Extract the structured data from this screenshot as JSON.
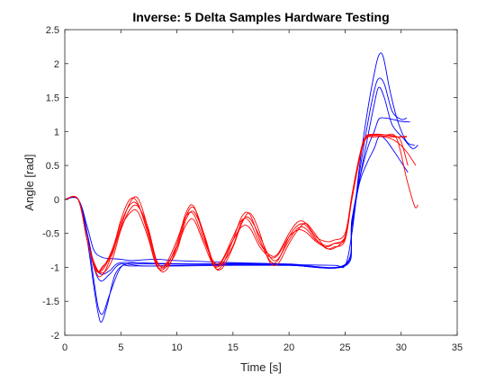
{
  "chart_data": {
    "type": "line",
    "title": "Inverse: 5 Delta Samples Hardware Testing",
    "xlabel": "Time [s]",
    "ylabel": "Angle [rad]",
    "xlim": [
      0,
      35
    ],
    "ylim": [
      -2,
      2.5
    ],
    "xticks": [
      0,
      5,
      10,
      15,
      20,
      25,
      30,
      35
    ],
    "xtick_labels": [
      "0",
      "5",
      "10",
      "15",
      "20",
      "25",
      "30",
      "35"
    ],
    "yticks": [
      -2,
      -1.5,
      -1,
      -0.5,
      0,
      0.5,
      1,
      1.5,
      2,
      2.5
    ],
    "ytick_labels": [
      "-2",
      "-1.5",
      "-1",
      "-0.5",
      "0",
      "0.5",
      "1",
      "1.5",
      "2",
      "2.5"
    ],
    "grid": false,
    "legend": "none",
    "colors": {
      "blue": "#0000ff",
      "red": "#ff0000",
      "axis": "#262626"
    },
    "series": [
      {
        "color": "#0000ff",
        "points": [
          [
            0,
            0
          ],
          [
            1.2,
            0
          ],
          [
            2,
            -0.6
          ],
          [
            2.6,
            -1.3
          ],
          [
            3,
            -1.7
          ],
          [
            3.3,
            -1.8
          ],
          [
            3.8,
            -1.55
          ],
          [
            4.5,
            -1.1
          ],
          [
            5.5,
            -0.95
          ],
          [
            7,
            -0.95
          ],
          [
            10,
            -0.95
          ],
          [
            15,
            -0.95
          ],
          [
            20,
            -0.96
          ],
          [
            24,
            -0.97
          ],
          [
            25,
            -0.97
          ],
          [
            25.6,
            -0.5
          ],
          [
            26.3,
            0.5
          ],
          [
            27,
            1.3
          ],
          [
            27.6,
            1.85
          ],
          [
            28,
            2.12
          ],
          [
            28.4,
            2.1
          ],
          [
            29,
            1.6
          ],
          [
            29.7,
            1.15
          ],
          [
            30.5,
            0.85
          ],
          [
            31.2,
            0.8
          ]
        ]
      },
      {
        "color": "#0000ff",
        "points": [
          [
            0,
            0
          ],
          [
            1.2,
            0
          ],
          [
            2,
            -0.5
          ],
          [
            2.6,
            -1.2
          ],
          [
            3,
            -1.6
          ],
          [
            3.4,
            -1.68
          ],
          [
            4,
            -1.4
          ],
          [
            5,
            -1.0
          ],
          [
            6,
            -0.98
          ],
          [
            10,
            -0.98
          ],
          [
            15,
            -0.97
          ],
          [
            20,
            -0.97
          ],
          [
            25,
            -0.98
          ],
          [
            25.6,
            -0.5
          ],
          [
            26.3,
            0.4
          ],
          [
            27,
            1.1
          ],
          [
            27.6,
            1.6
          ],
          [
            28,
            1.78
          ],
          [
            28.5,
            1.7
          ],
          [
            29.2,
            1.3
          ],
          [
            30,
            1.18
          ],
          [
            30.5,
            1.2
          ]
        ]
      },
      {
        "color": "#0000ff",
        "points": [
          [
            0,
            0
          ],
          [
            1.2,
            0
          ],
          [
            2,
            -0.5
          ],
          [
            2.6,
            -1.0
          ],
          [
            3.2,
            -1.2
          ],
          [
            4,
            -1.1
          ],
          [
            5,
            -0.95
          ],
          [
            7,
            -0.98
          ],
          [
            10,
            -0.97
          ],
          [
            15,
            -0.96
          ],
          [
            20,
            -0.97
          ],
          [
            25,
            -0.97
          ],
          [
            25.6,
            -0.4
          ],
          [
            26.3,
            0.3
          ],
          [
            27,
            0.9
          ],
          [
            27.6,
            1.4
          ],
          [
            28,
            1.65
          ],
          [
            28.5,
            1.5
          ],
          [
            29.2,
            1.1
          ],
          [
            30.2,
            0.9
          ],
          [
            31,
            0.75
          ],
          [
            31.5,
            0.8
          ]
        ]
      },
      {
        "color": "#0000ff",
        "points": [
          [
            0,
            0
          ],
          [
            1.2,
            0
          ],
          [
            2,
            -0.5
          ],
          [
            2.6,
            -0.95
          ],
          [
            3.2,
            -1.1
          ],
          [
            4,
            -1.05
          ],
          [
            5,
            -0.93
          ],
          [
            8,
            -0.94
          ],
          [
            12,
            -0.95
          ],
          [
            16,
            -0.94
          ],
          [
            20,
            -0.96
          ],
          [
            25,
            -0.96
          ],
          [
            25.6,
            -0.3
          ],
          [
            26.3,
            0.3
          ],
          [
            27,
            0.75
          ],
          [
            27.6,
            1.0
          ],
          [
            28,
            1.18
          ],
          [
            28.5,
            1.2
          ],
          [
            29.2,
            1.18
          ],
          [
            30,
            1.15
          ],
          [
            30.8,
            1.14
          ]
        ]
      },
      {
        "color": "#0000ff",
        "points": [
          [
            0,
            0
          ],
          [
            1.2,
            0
          ],
          [
            2,
            -0.4
          ],
          [
            2.6,
            -0.75
          ],
          [
            3.3,
            -0.85
          ],
          [
            4,
            -0.87
          ],
          [
            5,
            -0.88
          ],
          [
            6,
            -0.9
          ],
          [
            8,
            -0.88
          ],
          [
            10,
            -0.9
          ],
          [
            15,
            -0.93
          ],
          [
            20,
            -0.95
          ],
          [
            25,
            -0.96
          ],
          [
            25.6,
            -0.35
          ],
          [
            26.3,
            0.25
          ],
          [
            27,
            0.55
          ],
          [
            27.6,
            0.75
          ],
          [
            28,
            0.92
          ],
          [
            28.5,
            0.9
          ],
          [
            29.2,
            0.75
          ],
          [
            30,
            0.55
          ],
          [
            30.6,
            0.4
          ]
        ]
      },
      {
        "color": "#ff0000",
        "points": [
          [
            0,
            0
          ],
          [
            1.2,
            0
          ],
          [
            2,
            -0.6
          ],
          [
            2.8,
            -1.02
          ],
          [
            3.3,
            -1.05
          ],
          [
            4,
            -0.85
          ],
          [
            5,
            -0.4
          ],
          [
            5.8,
            -0.05
          ],
          [
            6.5,
            0.02
          ],
          [
            7.3,
            -0.35
          ],
          [
            8.2,
            -0.95
          ],
          [
            9,
            -1.05
          ],
          [
            10,
            -0.7
          ],
          [
            10.8,
            -0.25
          ],
          [
            11.5,
            -0.12
          ],
          [
            12.3,
            -0.45
          ],
          [
            13.2,
            -0.95
          ],
          [
            14,
            -1.02
          ],
          [
            15,
            -0.7
          ],
          [
            15.8,
            -0.35
          ],
          [
            16.5,
            -0.2
          ],
          [
            17.3,
            -0.45
          ],
          [
            18.2,
            -0.9
          ],
          [
            19,
            -0.95
          ],
          [
            20,
            -0.65
          ],
          [
            20.8,
            -0.45
          ],
          [
            21.5,
            -0.35
          ],
          [
            22.3,
            -0.5
          ],
          [
            23.2,
            -0.7
          ],
          [
            24,
            -0.72
          ],
          [
            25,
            -0.55
          ],
          [
            25.6,
            0.0
          ],
          [
            26.3,
            0.6
          ],
          [
            26.8,
            0.9
          ],
          [
            27.5,
            0.95
          ],
          [
            28.5,
            0.95
          ],
          [
            29.5,
            0.93
          ],
          [
            30,
            0.85
          ],
          [
            30.6,
            0.5
          ]
        ]
      },
      {
        "color": "#ff0000",
        "points": [
          [
            0,
            0
          ],
          [
            1.2,
            0
          ],
          [
            2,
            -0.6
          ],
          [
            2.8,
            -1.08
          ],
          [
            3.4,
            -1.1
          ],
          [
            4.2,
            -0.8
          ],
          [
            5,
            -0.3
          ],
          [
            5.8,
            0.0
          ],
          [
            6.5,
            -0.05
          ],
          [
            7.4,
            -0.5
          ],
          [
            8.2,
            -0.98
          ],
          [
            9,
            -1.0
          ],
          [
            10,
            -0.65
          ],
          [
            10.8,
            -0.2
          ],
          [
            11.5,
            -0.1
          ],
          [
            12.4,
            -0.55
          ],
          [
            13.3,
            -0.98
          ],
          [
            14,
            -0.98
          ],
          [
            15,
            -0.6
          ],
          [
            15.8,
            -0.25
          ],
          [
            16.5,
            -0.22
          ],
          [
            17.4,
            -0.6
          ],
          [
            18.3,
            -0.9
          ],
          [
            19,
            -0.9
          ],
          [
            20,
            -0.55
          ],
          [
            20.8,
            -0.38
          ],
          [
            21.5,
            -0.38
          ],
          [
            22.4,
            -0.58
          ],
          [
            23.3,
            -0.72
          ],
          [
            24,
            -0.7
          ],
          [
            25,
            -0.6
          ],
          [
            25.6,
            0.05
          ],
          [
            26.3,
            0.65
          ],
          [
            26.8,
            0.92
          ],
          [
            27.5,
            0.96
          ],
          [
            28.6,
            0.95
          ],
          [
            29.6,
            0.9
          ],
          [
            30.5,
            0.3
          ],
          [
            31.2,
            -0.1
          ],
          [
            31.5,
            -0.08
          ]
        ]
      },
      {
        "color": "#ff0000",
        "points": [
          [
            0,
            0
          ],
          [
            1.2,
            0
          ],
          [
            2,
            -0.6
          ],
          [
            2.8,
            -1.0
          ],
          [
            3.4,
            -1.08
          ],
          [
            4.2,
            -0.9
          ],
          [
            5,
            -0.45
          ],
          [
            5.8,
            -0.15
          ],
          [
            6.5,
            -0.1
          ],
          [
            7.4,
            -0.4
          ],
          [
            8.2,
            -0.9
          ],
          [
            9,
            -1.0
          ],
          [
            10,
            -0.75
          ],
          [
            10.8,
            -0.3
          ],
          [
            11.5,
            -0.18
          ],
          [
            12.4,
            -0.5
          ],
          [
            13.3,
            -0.95
          ],
          [
            14,
            -0.95
          ],
          [
            15,
            -0.68
          ],
          [
            15.8,
            -0.32
          ],
          [
            16.5,
            -0.28
          ],
          [
            17.4,
            -0.55
          ],
          [
            18.3,
            -0.85
          ],
          [
            19,
            -0.88
          ],
          [
            20,
            -0.6
          ],
          [
            20.8,
            -0.42
          ],
          [
            21.5,
            -0.43
          ],
          [
            22.4,
            -0.6
          ],
          [
            23.3,
            -0.68
          ],
          [
            24,
            -0.65
          ],
          [
            25,
            -0.58
          ],
          [
            25.6,
            0.0
          ],
          [
            26.3,
            0.6
          ],
          [
            26.8,
            0.9
          ],
          [
            27.5,
            0.94
          ],
          [
            28.6,
            0.93
          ],
          [
            29.6,
            0.92
          ],
          [
            30.5,
            0.93
          ]
        ]
      },
      {
        "color": "#ff0000",
        "points": [
          [
            0,
            0
          ],
          [
            1.2,
            0
          ],
          [
            2,
            -0.6
          ],
          [
            2.8,
            -1.04
          ],
          [
            3.4,
            -1.0
          ],
          [
            4.2,
            -0.75
          ],
          [
            5,
            -0.35
          ],
          [
            5.8,
            -0.08
          ],
          [
            6.5,
            -0.08
          ],
          [
            7.4,
            -0.45
          ],
          [
            8.2,
            -0.92
          ],
          [
            9,
            -0.95
          ],
          [
            10,
            -0.6
          ],
          [
            10.8,
            -0.25
          ],
          [
            11.5,
            -0.22
          ],
          [
            12.4,
            -0.6
          ],
          [
            13.3,
            -0.92
          ],
          [
            14,
            -0.9
          ],
          [
            15,
            -0.55
          ],
          [
            15.8,
            -0.3
          ],
          [
            16.5,
            -0.33
          ],
          [
            17.4,
            -0.65
          ],
          [
            18.3,
            -0.82
          ],
          [
            19,
            -0.8
          ],
          [
            20,
            -0.5
          ],
          [
            20.8,
            -0.33
          ],
          [
            21.5,
            -0.35
          ],
          [
            22.4,
            -0.55
          ],
          [
            23.3,
            -0.62
          ],
          [
            24,
            -0.6
          ],
          [
            25,
            -0.5
          ],
          [
            25.6,
            0.05
          ],
          [
            26.3,
            0.65
          ],
          [
            26.8,
            0.9
          ],
          [
            27.5,
            0.92
          ],
          [
            28.6,
            0.92
          ],
          [
            29.6,
            0.85
          ],
          [
            30.5,
            0.7
          ],
          [
            31.3,
            0.5
          ]
        ]
      },
      {
        "color": "#ff0000",
        "points": [
          [
            0,
            0
          ],
          [
            1.2,
            0
          ],
          [
            2,
            -0.6
          ],
          [
            2.8,
            -1.05
          ],
          [
            3.4,
            -0.98
          ],
          [
            4.2,
            -0.82
          ],
          [
            5,
            -0.42
          ],
          [
            5.8,
            -0.2
          ],
          [
            6.5,
            -0.18
          ],
          [
            7.4,
            -0.55
          ],
          [
            8.2,
            -0.98
          ],
          [
            9,
            -0.97
          ],
          [
            10,
            -0.7
          ],
          [
            10.8,
            -0.38
          ],
          [
            11.5,
            -0.3
          ],
          [
            12.4,
            -0.65
          ],
          [
            13.3,
            -0.98
          ],
          [
            14,
            -0.92
          ],
          [
            15,
            -0.6
          ],
          [
            15.8,
            -0.4
          ],
          [
            16.5,
            -0.42
          ],
          [
            17.4,
            -0.7
          ],
          [
            18.3,
            -0.85
          ],
          [
            19,
            -0.82
          ],
          [
            20,
            -0.55
          ],
          [
            20.8,
            -0.45
          ],
          [
            21.5,
            -0.48
          ],
          [
            22.4,
            -0.62
          ],
          [
            23.3,
            -0.7
          ],
          [
            24,
            -0.65
          ],
          [
            25,
            -0.55
          ],
          [
            25.6,
            0.0
          ],
          [
            26.3,
            0.6
          ],
          [
            26.8,
            0.88
          ],
          [
            27.5,
            0.95
          ],
          [
            28.6,
            0.95
          ],
          [
            29.6,
            0.92
          ],
          [
            30.5,
            0.92
          ]
        ]
      }
    ]
  }
}
